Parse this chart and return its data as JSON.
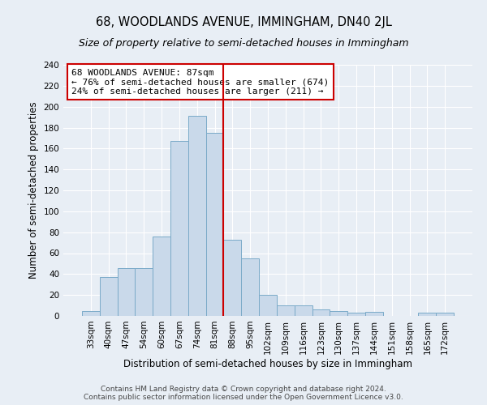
{
  "title": "68, WOODLANDS AVENUE, IMMINGHAM, DN40 2JL",
  "subtitle": "Size of property relative to semi-detached houses in Immingham",
  "xlabel": "Distribution of semi-detached houses by size in Immingham",
  "ylabel": "Number of semi-detached properties",
  "categories": [
    "33sqm",
    "40sqm",
    "47sqm",
    "54sqm",
    "60sqm",
    "67sqm",
    "74sqm",
    "81sqm",
    "88sqm",
    "95sqm",
    "102sqm",
    "109sqm",
    "116sqm",
    "123sqm",
    "130sqm",
    "137sqm",
    "144sqm",
    "151sqm",
    "158sqm",
    "165sqm",
    "172sqm"
  ],
  "values": [
    5,
    37,
    46,
    46,
    76,
    167,
    191,
    175,
    73,
    55,
    20,
    10,
    10,
    6,
    5,
    3,
    4,
    0,
    0,
    3,
    3
  ],
  "bar_color": "#c9d9ea",
  "bar_edge_color": "#7aaac8",
  "vline_index": 8,
  "vline_color": "#cc0000",
  "annotation_title": "68 WOODLANDS AVENUE: 87sqm",
  "annotation_line1": "← 76% of semi-detached houses are smaller (674)",
  "annotation_line2": "24% of semi-detached houses are larger (211) →",
  "annotation_box_color": "#ffffff",
  "annotation_box_edge_color": "#cc0000",
  "ylim": [
    0,
    240
  ],
  "yticks": [
    0,
    20,
    40,
    60,
    80,
    100,
    120,
    140,
    160,
    180,
    200,
    220,
    240
  ],
  "footer_line1": "Contains HM Land Registry data © Crown copyright and database right 2024.",
  "footer_line2": "Contains public sector information licensed under the Open Government Licence v3.0.",
  "bg_color": "#e8eef5",
  "title_fontsize": 10.5,
  "subtitle_fontsize": 9,
  "axis_label_fontsize": 8.5,
  "tick_fontsize": 7.5,
  "annotation_fontsize": 8,
  "footer_fontsize": 6.5
}
